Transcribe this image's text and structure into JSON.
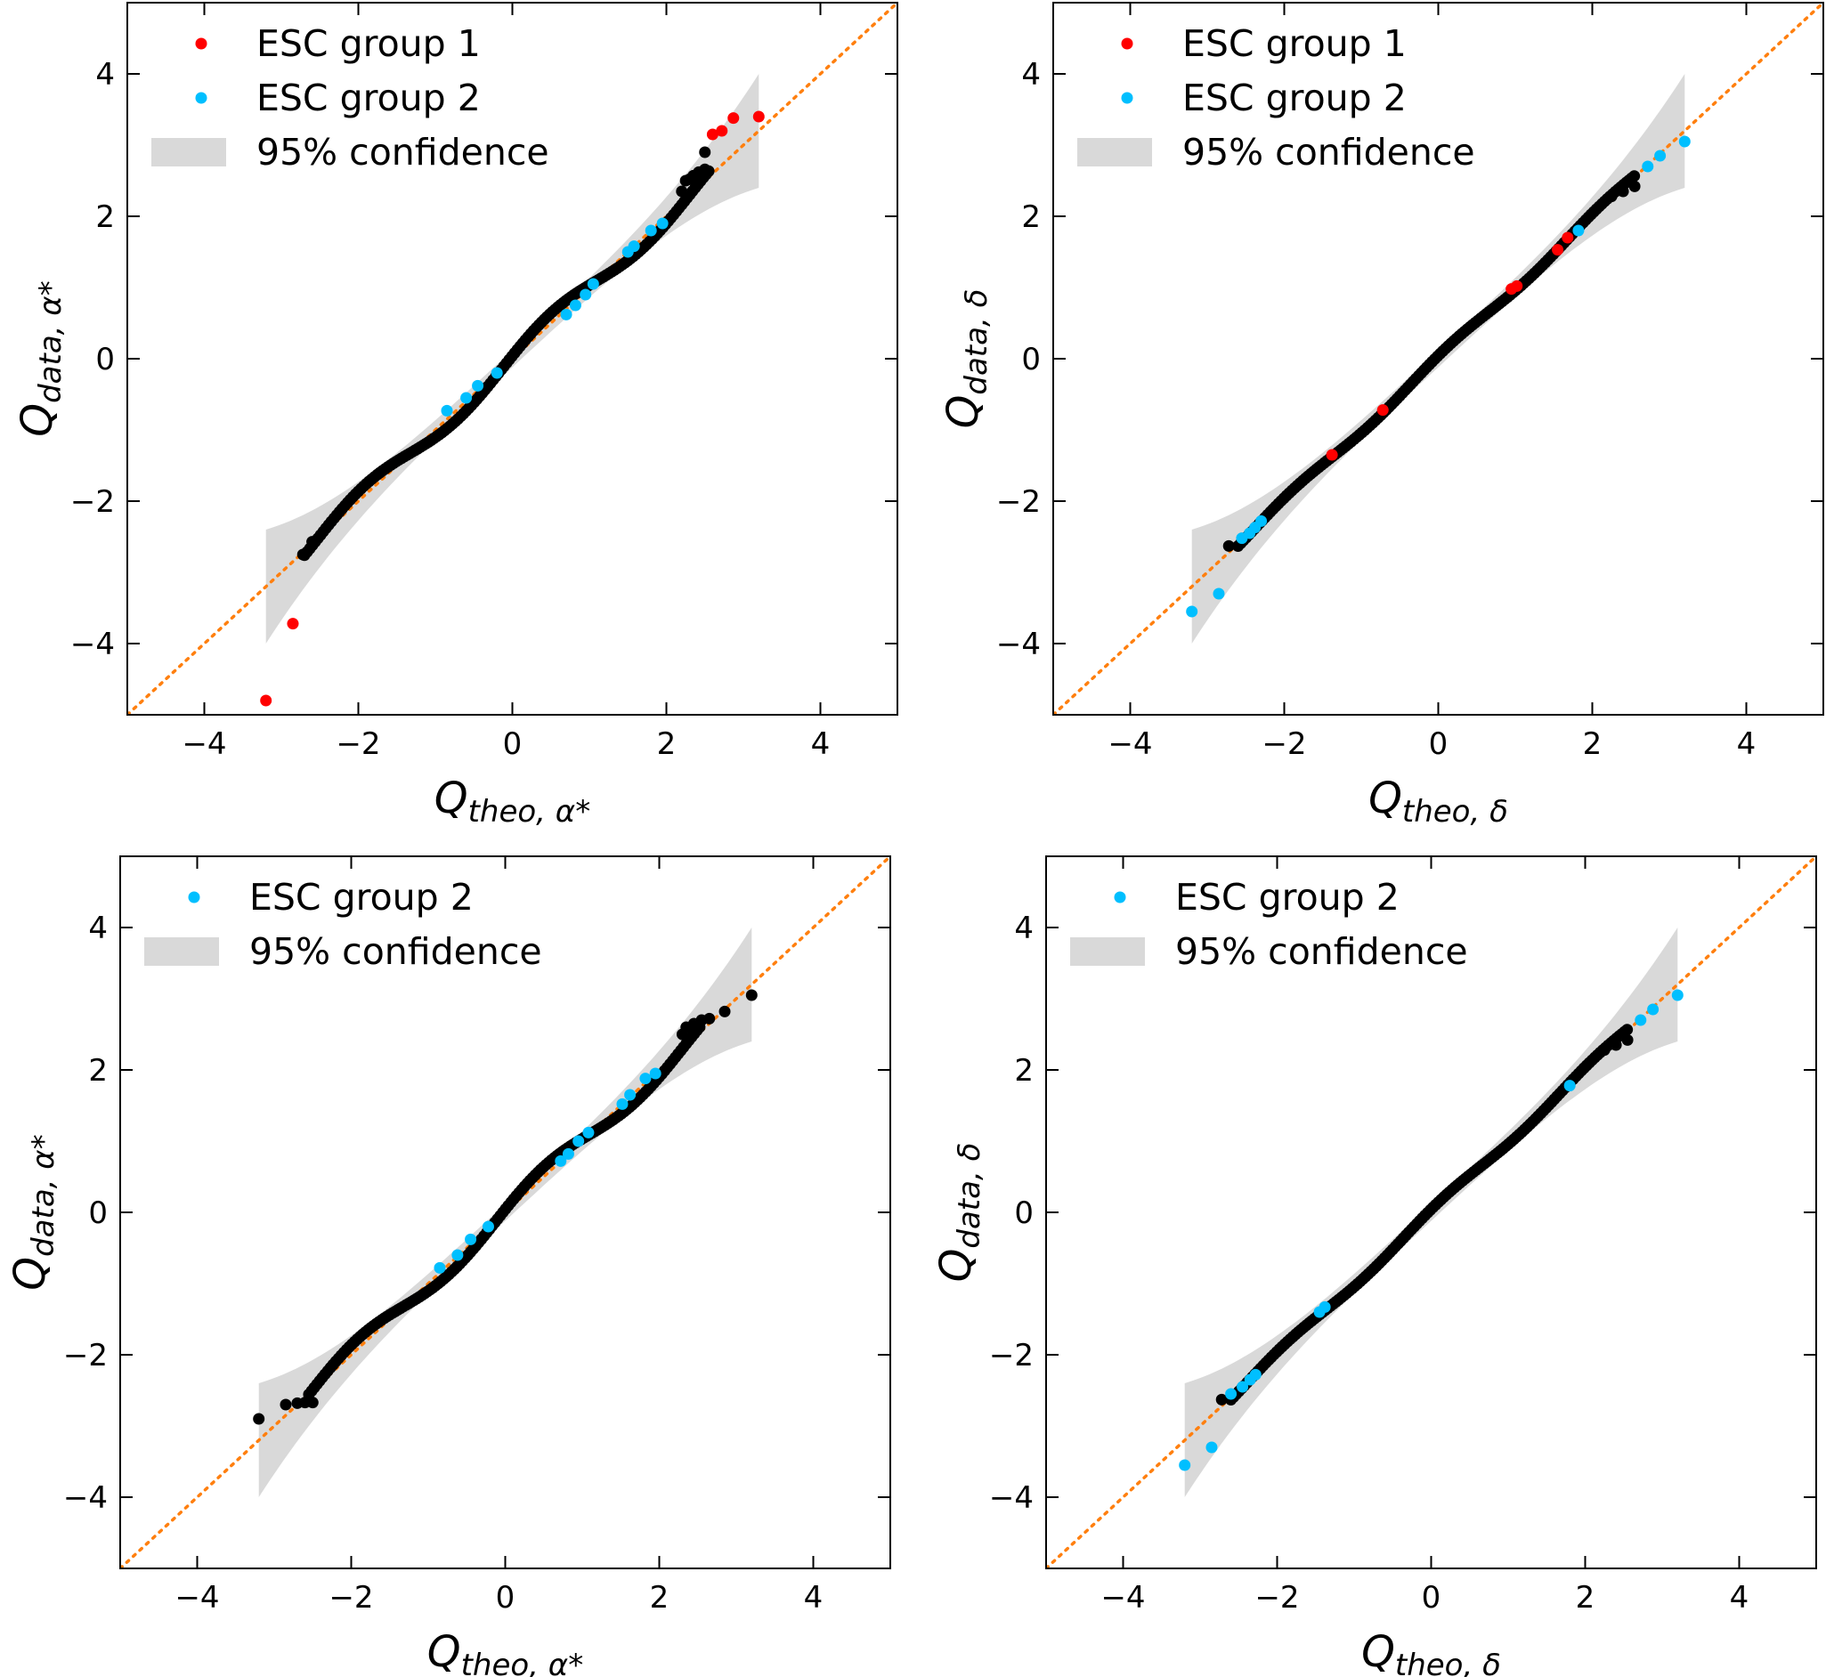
{
  "figure": {
    "layout": "2x2 grid of Q-Q plots"
  },
  "colors": {
    "background": "#ffffff",
    "axes": "#000000",
    "reference_line": "#ff7f0e",
    "confidence_band": "#d9d9d9",
    "points_default": "#000000",
    "esc_group_1": "#ff0000",
    "esc_group_2": "#00bfff"
  },
  "chart_data": [
    {
      "type": "scatter",
      "panel": "top-left",
      "xlabel": {
        "main": "Q",
        "sub": "theo, α*"
      },
      "ylabel": {
        "main": "Q",
        "sub": "data, α*"
      },
      "xlim": [
        -5,
        5
      ],
      "ylim": [
        -5,
        5
      ],
      "xticks": [
        -4,
        -2,
        0,
        2,
        4
      ],
      "yticks": [
        -4,
        -2,
        0,
        2,
        4
      ],
      "xtick_labels": [
        "−4",
        "−2",
        "0",
        "2",
        "4"
      ],
      "ytick_labels": [
        "−4",
        "−2",
        "0",
        "2",
        "4"
      ],
      "reference_line": {
        "style": "dotted",
        "slope": 1,
        "intercept": 0
      },
      "confidence_band": {
        "label": "95% confidence",
        "x_range": [
          -3.2,
          3.2
        ],
        "halfwidth_at_ends": 0.8
      },
      "legend": {
        "placement": "top-left",
        "entries": [
          {
            "label": "ESC group 1",
            "kind": "dot",
            "color": "#ff0000"
          },
          {
            "label": "ESC group 2",
            "kind": "dot",
            "color": "#00bfff"
          },
          {
            "label": "95% confidence",
            "kind": "patch",
            "color": "#d9d9d9"
          }
        ]
      },
      "wiggle": {
        "amp": 0.14,
        "freq": 2.6,
        "phase": 0.3
      },
      "bulk_range": [
        -2.7,
        2.55
      ],
      "bulk_step": 0.035,
      "black_extra": [
        {
          "x": -2.72,
          "y": -2.75
        },
        {
          "x": -2.6,
          "y": -2.57
        },
        {
          "x": 2.2,
          "y": 2.35
        },
        {
          "x": 2.25,
          "y": 2.5
        },
        {
          "x": 2.3,
          "y": 2.52
        },
        {
          "x": 2.35,
          "y": 2.57
        },
        {
          "x": 2.42,
          "y": 2.62
        },
        {
          "x": 2.5,
          "y": 2.66
        },
        {
          "x": 2.5,
          "y": 2.9
        }
      ],
      "esc_group_1": [
        {
          "x": -3.2,
          "y": -4.8
        },
        {
          "x": -2.85,
          "y": -3.72
        },
        {
          "x": 2.6,
          "y": 3.15
        },
        {
          "x": 2.72,
          "y": 3.2
        },
        {
          "x": 2.87,
          "y": 3.38
        },
        {
          "x": 3.2,
          "y": 3.4
        }
      ],
      "esc_group_2": [
        {
          "x": -0.85,
          "y": -0.73
        },
        {
          "x": -0.6,
          "y": -0.55
        },
        {
          "x": -0.45,
          "y": -0.38
        },
        {
          "x": -0.2,
          "y": -0.2
        },
        {
          "x": 0.7,
          "y": 0.62
        },
        {
          "x": 0.82,
          "y": 0.75
        },
        {
          "x": 0.95,
          "y": 0.9
        },
        {
          "x": 1.05,
          "y": 1.05
        },
        {
          "x": 1.5,
          "y": 1.5
        },
        {
          "x": 1.58,
          "y": 1.58
        },
        {
          "x": 1.8,
          "y": 1.8
        },
        {
          "x": 1.95,
          "y": 1.9
        }
      ]
    },
    {
      "type": "scatter",
      "panel": "top-right",
      "xlabel": {
        "main": "Q",
        "sub": "theo, δ"
      },
      "ylabel": {
        "main": "Q",
        "sub": "data, δ"
      },
      "xlim": [
        -5,
        5
      ],
      "ylim": [
        -5,
        5
      ],
      "xticks": [
        -4,
        -2,
        0,
        2,
        4
      ],
      "yticks": [
        -4,
        -2,
        0,
        2,
        4
      ],
      "xtick_labels": [
        "−4",
        "−2",
        "0",
        "2",
        "4"
      ],
      "ytick_labels": [
        "−4",
        "−2",
        "0",
        "2",
        "4"
      ],
      "reference_line": {
        "style": "dotted",
        "slope": 1,
        "intercept": 0
      },
      "confidence_band": {
        "label": "95% confidence",
        "x_range": [
          -3.2,
          3.2
        ],
        "halfwidth_at_ends": 0.8
      },
      "legend": {
        "placement": "top-left",
        "entries": [
          {
            "label": "ESC group 1",
            "kind": "dot",
            "color": "#ff0000"
          },
          {
            "label": "ESC group 2",
            "kind": "dot",
            "color": "#00bfff"
          },
          {
            "label": "95% confidence",
            "kind": "patch",
            "color": "#d9d9d9"
          }
        ]
      },
      "wiggle": {
        "amp": 0.05,
        "freq": 3.1,
        "phase": 1.1
      },
      "bulk_range": [
        -2.6,
        2.55
      ],
      "bulk_step": 0.035,
      "black_extra": [
        {
          "x": -2.72,
          "y": -2.63
        },
        {
          "x": 2.25,
          "y": 2.28
        },
        {
          "x": 2.4,
          "y": 2.35
        },
        {
          "x": 2.55,
          "y": 2.42
        }
      ],
      "esc_group_1": [
        {
          "x": -1.38,
          "y": -1.35
        },
        {
          "x": -0.72,
          "y": -0.72
        },
        {
          "x": 0.95,
          "y": 0.98
        },
        {
          "x": 1.02,
          "y": 1.02
        },
        {
          "x": 1.55,
          "y": 1.53
        },
        {
          "x": 1.68,
          "y": 1.7
        }
      ],
      "esc_group_2": [
        {
          "x": -3.2,
          "y": -3.55
        },
        {
          "x": -2.85,
          "y": -3.3
        },
        {
          "x": -2.55,
          "y": -2.52
        },
        {
          "x": -2.45,
          "y": -2.45
        },
        {
          "x": -2.38,
          "y": -2.37
        },
        {
          "x": -2.3,
          "y": -2.28
        },
        {
          "x": 1.82,
          "y": 1.8
        },
        {
          "x": 2.72,
          "y": 2.7
        },
        {
          "x": 2.88,
          "y": 2.85
        },
        {
          "x": 3.2,
          "y": 3.05
        }
      ]
    },
    {
      "type": "scatter",
      "panel": "bottom-left",
      "xlabel": {
        "main": "Q",
        "sub": "theo, α*"
      },
      "ylabel": {
        "main": "Q",
        "sub": "data, α*"
      },
      "xlim": [
        -5,
        5
      ],
      "ylim": [
        -5,
        5
      ],
      "xticks": [
        -4,
        -2,
        0,
        2,
        4
      ],
      "yticks": [
        -4,
        -2,
        0,
        2,
        4
      ],
      "xtick_labels": [
        "−4",
        "−2",
        "0",
        "2",
        "4"
      ],
      "ytick_labels": [
        "−4",
        "−2",
        "0",
        "2",
        "4"
      ],
      "reference_line": {
        "style": "dotted",
        "slope": 1,
        "intercept": 0
      },
      "confidence_band": {
        "label": "95% confidence",
        "x_range": [
          -3.2,
          3.2
        ],
        "halfwidth_at_ends": 0.8
      },
      "legend": {
        "placement": "top-left",
        "entries": [
          {
            "label": "ESC group 2",
            "kind": "dot",
            "color": "#00bfff"
          },
          {
            "label": "95% confidence",
            "kind": "patch",
            "color": "#d9d9d9"
          }
        ]
      },
      "wiggle": {
        "amp": 0.14,
        "freq": 2.6,
        "phase": 0.3
      },
      "bulk_range": [
        -2.55,
        2.55
      ],
      "bulk_step": 0.035,
      "black_extra": [
        {
          "x": -3.2,
          "y": -2.9
        },
        {
          "x": -2.85,
          "y": -2.7
        },
        {
          "x": -2.7,
          "y": -2.68
        },
        {
          "x": -2.6,
          "y": -2.67
        },
        {
          "x": -2.5,
          "y": -2.67
        },
        {
          "x": 2.3,
          "y": 2.5
        },
        {
          "x": 2.35,
          "y": 2.6
        },
        {
          "x": 2.45,
          "y": 2.65
        },
        {
          "x": 2.55,
          "y": 2.7
        },
        {
          "x": 2.65,
          "y": 2.72
        },
        {
          "x": 2.85,
          "y": 2.82
        },
        {
          "x": 3.2,
          "y": 3.05
        }
      ],
      "esc_group_1": [],
      "esc_group_2": [
        {
          "x": -0.85,
          "y": -0.78
        },
        {
          "x": -0.62,
          "y": -0.6
        },
        {
          "x": -0.45,
          "y": -0.38
        },
        {
          "x": -0.22,
          "y": -0.2
        },
        {
          "x": 0.72,
          "y": 0.72
        },
        {
          "x": 0.82,
          "y": 0.82
        },
        {
          "x": 0.95,
          "y": 1.0
        },
        {
          "x": 1.08,
          "y": 1.12
        },
        {
          "x": 1.52,
          "y": 1.52
        },
        {
          "x": 1.62,
          "y": 1.65
        },
        {
          "x": 1.82,
          "y": 1.88
        },
        {
          "x": 1.95,
          "y": 1.95
        }
      ]
    },
    {
      "type": "scatter",
      "panel": "bottom-right",
      "xlabel": {
        "main": "Q",
        "sub": "theo, δ"
      },
      "ylabel": {
        "main": "Q",
        "sub": "data, δ"
      },
      "xlim": [
        -5,
        5
      ],
      "ylim": [
        -5,
        5
      ],
      "xticks": [
        -4,
        -2,
        0,
        2,
        4
      ],
      "yticks": [
        -4,
        -2,
        0,
        2,
        4
      ],
      "xtick_labels": [
        "−4",
        "−2",
        "0",
        "2",
        "4"
      ],
      "ytick_labels": [
        "−4",
        "−2",
        "0",
        "2",
        "4"
      ],
      "reference_line": {
        "style": "dotted",
        "slope": 1,
        "intercept": 0
      },
      "confidence_band": {
        "label": "95% confidence",
        "x_range": [
          -3.2,
          3.2
        ],
        "halfwidth_at_ends": 0.8
      },
      "legend": {
        "placement": "top-left",
        "entries": [
          {
            "label": "ESC group 2",
            "kind": "dot",
            "color": "#00bfff"
          },
          {
            "label": "95% confidence",
            "kind": "patch",
            "color": "#d9d9d9"
          }
        ]
      },
      "wiggle": {
        "amp": 0.05,
        "freq": 3.1,
        "phase": 1.1
      },
      "bulk_range": [
        -2.6,
        2.55
      ],
      "bulk_step": 0.035,
      "black_extra": [
        {
          "x": -2.72,
          "y": -2.63
        },
        {
          "x": 2.25,
          "y": 2.28
        },
        {
          "x": 2.4,
          "y": 2.35
        },
        {
          "x": 2.55,
          "y": 2.42
        }
      ],
      "esc_group_1": [],
      "esc_group_2": [
        {
          "x": -3.2,
          "y": -3.55
        },
        {
          "x": -2.85,
          "y": -3.3
        },
        {
          "x": -2.6,
          "y": -2.55
        },
        {
          "x": -2.45,
          "y": -2.45
        },
        {
          "x": -2.35,
          "y": -2.35
        },
        {
          "x": -2.28,
          "y": -2.28
        },
        {
          "x": -1.45,
          "y": -1.4
        },
        {
          "x": -1.38,
          "y": -1.33
        },
        {
          "x": 1.8,
          "y": 1.78
        },
        {
          "x": 2.72,
          "y": 2.7
        },
        {
          "x": 2.88,
          "y": 2.85
        },
        {
          "x": 3.2,
          "y": 3.05
        }
      ]
    }
  ]
}
